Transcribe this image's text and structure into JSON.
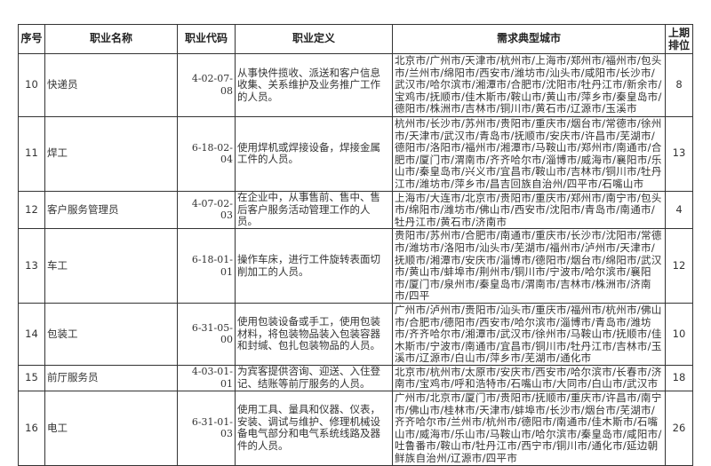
{
  "headers": [
    "序号",
    "职业名称",
    "职业代码",
    "职业定义",
    "需求典型城市",
    "上期排位"
  ],
  "rows": [
    {
      "no": "10",
      "name": "快递员",
      "code": "4-02-07-08",
      "definition": "从事快件揽收、派送和客户信息收集、关系维护及业务推广工作的人员。",
      "cities": "北京市/广州市/天津市/杭州市/上海市/郑州市/福州市/包头市/兰州市/绵阳市/西安市/潍坊市/汕头市/咸阳市/长沙市/武汉市/哈尔滨市/湘潭市/合肥市/沈阳市/牡丹江市/新余市/宝鸡市/抚顺市/佳木斯市/鞍山市/黄山市/萍乡市/秦皇岛市/德阳市/株洲市/吉林市/铜川市/黄石市/辽源市/玉溪市",
      "rank": "8"
    },
    {
      "no": "11",
      "name": "焊工",
      "code": "6-18-02-04",
      "definition": "使用焊机或焊接设备，焊接金属工件的人员。",
      "cities": "杭州市/长沙市/苏州市/贵阳市/重庆市/烟台市/常德市/徐州市/天津市/武汉市/青岛市/抚顺市/安庆市/许昌市/芜湖市/德阳市/洛阳市/福州市/湘潭市/马鞍山市/郑州市/南通市/合肥市/厦门市/渭南市/齐齐哈尔市/淄博市/威海市/襄阳市/乐山市/秦皇岛市/兴义市/宜昌市/鞍山市/吉林市/铜川市/牡丹江市/潍坊市/萍乡市/昌吉回族自治州/四平市/石嘴山市",
      "rank": "13"
    },
    {
      "no": "12",
      "name": "客户服务管理员",
      "code": "4-07-02-03",
      "definition": "在企业中，从事售前、售中、售后客户服务活动管理工作的人员。",
      "cities": "上海市/大连市/北京市/贵阳市/重庆市/郑州市/南宁市/包头市/绵阳市/潍坊市/佛山市/西安市/沈阳市/青岛市/南通市/牡丹江市/黄石市/济南市",
      "rank": "4"
    },
    {
      "no": "13",
      "name": "车工",
      "code": "6-18-01-01",
      "definition": "操作车床，进行工件旋转表面切削加工的人员。",
      "cities": "贵阳市/苏州市/合肥市/南通市/重庆市/长沙市/沈阳市/常德市/潍坊市/洛阳市/汕头市/芜湖市/福州市/泸州市/天津市/抚顺市/湘潭市/安庆市/淄博市/德阳市/烟台市/绵阳市/武汉市/黄山市/蚌埠市/荆州市/铜川市/宁波市/哈尔滨市/襄阳市/厦门市/泉州市/秦皇岛市/渭南市/吉林市/株洲市/济南市/四平",
      "rank": "12"
    },
    {
      "no": "14",
      "name": "包装工",
      "code": "6-31-05-00",
      "definition": "使用包装设备或手工，使用包装材料，将包装物品装入包装容器和封缄、包扎包装物品的人员。",
      "cities": "广州市/泸州市/贵阳市/汕头市/重庆市/福州市/杭州市/佛山市/合肥市/德阳市/西安市/哈尔滨市/淄博市/青岛市/潍坊市/齐齐哈尔市/湘潭市/武汉市/徐州市/马鞍山市/抚顺市/佳木斯市/宁波市/南通市/宜昌市/铜川市/牡丹江市/吉林市/玉溪市/辽源市/白山市/萍乡市/芜湖市/通化市",
      "rank": "10"
    },
    {
      "no": "15",
      "name": "前厅服务员",
      "code": "4-03-01-01",
      "definition": "为宾客提供咨询、迎送、入住登记、结账等前厅服务的人员。",
      "cities": "北京市/杭州市/太原市/安庆市/西安市/哈尔滨市/长春市/济南市/宝鸡市/呼和浩特市/石嘴山市/大同市/白山市/武汉市",
      "rank": "18"
    },
    {
      "no": "16",
      "name": "电工",
      "code": "6-31-01-03",
      "definition": "使用工具、量具和仪器、仪表，安装、调试与维护、修理机械设备电气部分和电气系统线路及器件的人员。",
      "cities": "广州市/北京市/厦门市/贵阳市/抚顺市/重庆市/许昌市/南宁市/佛山市/桂林市/天津市/蚌埠市/长沙市/烟台市/芜湖市/齐齐哈尔市/兰州市/杭州市/德阳市/南通市/佳木斯市/石嘴山市/威海市/乐山市/马鞍山市/哈尔滨市/秦皇岛市/咸阳市/吐鲁番市/鞍山市/牡丹江市/西宁市/铜川市/通化市/延边朝鲜族自治州/辽源市/四平市",
      "rank": "26"
    }
  ]
}
